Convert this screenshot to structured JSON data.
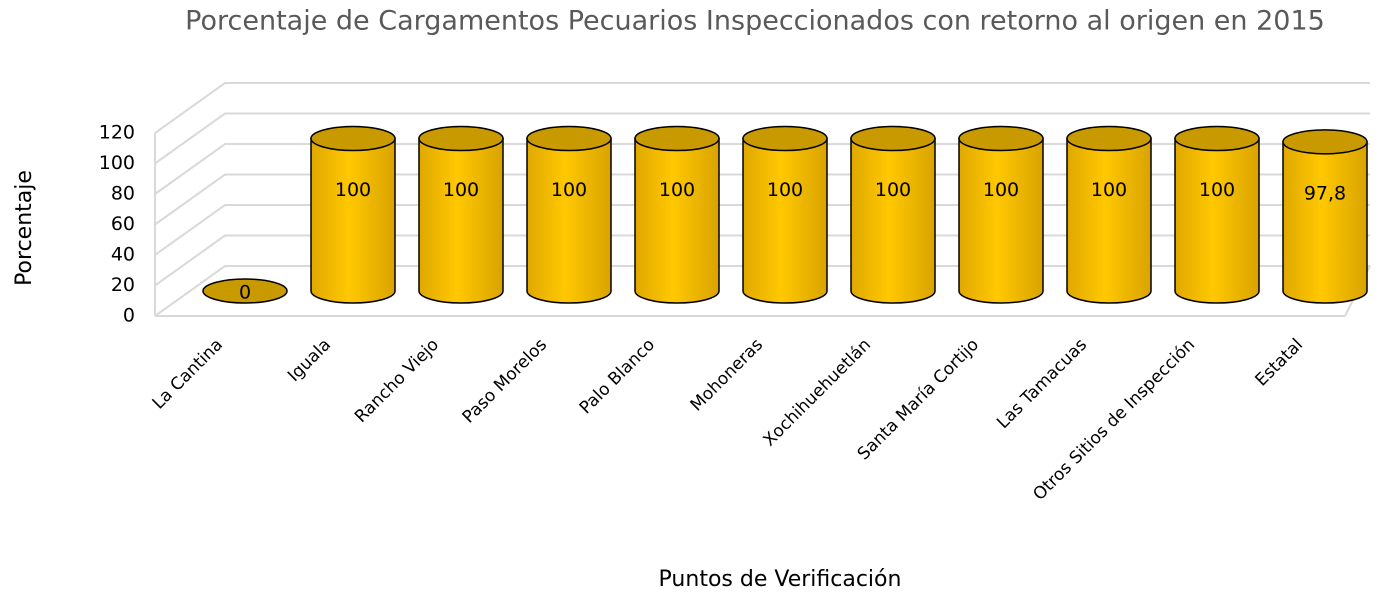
{
  "chart_data": {
    "type": "bar3d",
    "title": "Porcentaje de Cargamentos Pecuarios Inspeccionados con retorno al origen en 2015",
    "xlabel": "Puntos de Verificación",
    "ylabel": "Porcentaje",
    "categories": [
      "La Cantina",
      "Iguala",
      "Rancho Viejo",
      "Paso Morelos",
      "Palo Blanco",
      "Mohoneras",
      "Xochihuehuetlán",
      "Santa María Cortijo",
      "Las Tamacuas",
      "Otros Sitios de Inspección",
      "Estatal"
    ],
    "values": [
      0,
      100,
      100,
      100,
      100,
      100,
      100,
      100,
      100,
      100,
      97.8
    ],
    "value_labels": [
      "0",
      "100",
      "100",
      "100",
      "100",
      "100",
      "100",
      "100",
      "100",
      "100",
      "97,8"
    ],
    "color": "#ffc000",
    "ylim": [
      0,
      120
    ],
    "yticks": [
      0,
      20,
      40,
      60,
      80,
      100,
      120
    ],
    "grid": true
  }
}
